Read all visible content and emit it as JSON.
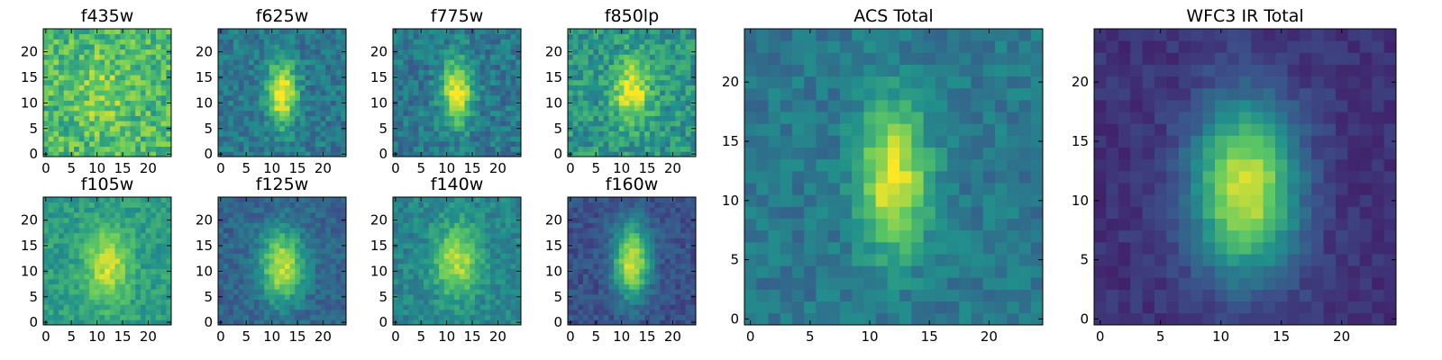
{
  "figure": {
    "colormap": [
      "#440154",
      "#3b528b",
      "#21918c",
      "#5ec962",
      "#fde725"
    ]
  },
  "chart_data": [
    {
      "type": "heatmap",
      "title": "f435w",
      "grid_size": 25,
      "xticks": [
        0,
        5,
        10,
        15,
        20
      ],
      "yticks": [
        0,
        5,
        10,
        15,
        20
      ],
      "xlim": [
        -0.5,
        24.5
      ],
      "ylim": [
        -0.5,
        24.5
      ],
      "peak": [
        11,
        12
      ],
      "sigma": [
        3,
        5
      ],
      "amp": 0.15,
      "background": 0.68,
      "noise": 0.35
    },
    {
      "type": "heatmap",
      "title": "f625w",
      "grid_size": 25,
      "xticks": [
        0,
        5,
        10,
        15,
        20
      ],
      "yticks": [
        0,
        5,
        10,
        15,
        20
      ],
      "xlim": [
        -0.5,
        24.5
      ],
      "ylim": [
        -0.5,
        24.5
      ],
      "peak": [
        12,
        12
      ],
      "sigma": [
        2,
        4.5
      ],
      "amp": 0.62,
      "background": 0.4,
      "noise": 0.25
    },
    {
      "type": "heatmap",
      "title": "f775w",
      "grid_size": 25,
      "xticks": [
        0,
        5,
        10,
        15,
        20
      ],
      "yticks": [
        0,
        5,
        10,
        15,
        20
      ],
      "xlim": [
        -0.5,
        24.5
      ],
      "ylim": [
        -0.5,
        24.5
      ],
      "peak": [
        12,
        12
      ],
      "sigma": [
        2,
        4.5
      ],
      "amp": 0.62,
      "background": 0.4,
      "noise": 0.25
    },
    {
      "type": "heatmap",
      "title": "f850lp",
      "grid_size": 25,
      "xticks": [
        0,
        5,
        10,
        15,
        20
      ],
      "yticks": [
        0,
        5,
        10,
        15,
        20
      ],
      "xlim": [
        -0.5,
        24.5
      ],
      "ylim": [
        -0.5,
        24.5
      ],
      "peak": [
        12,
        12
      ],
      "sigma": [
        2.5,
        4.5
      ],
      "amp": 0.45,
      "background": 0.52,
      "noise": 0.3
    },
    {
      "type": "heatmap",
      "title": "f105w",
      "grid_size": 25,
      "xticks": [
        0,
        5,
        10,
        15,
        20
      ],
      "yticks": [
        0,
        5,
        10,
        15,
        20
      ],
      "xlim": [
        -0.5,
        24.5
      ],
      "ylim": [
        -0.5,
        24.5
      ],
      "peak": [
        12,
        11
      ],
      "sigma": [
        3,
        5
      ],
      "amp": 0.38,
      "background": 0.55,
      "noise": 0.2
    },
    {
      "type": "heatmap",
      "title": "f125w",
      "grid_size": 25,
      "xticks": [
        0,
        5,
        10,
        15,
        20
      ],
      "yticks": [
        0,
        5,
        10,
        15,
        20
      ],
      "xlim": [
        -0.5,
        24.5
      ],
      "ylim": [
        -0.5,
        24.5
      ],
      "peak": [
        12,
        11
      ],
      "sigma": [
        3,
        5
      ],
      "amp": 0.6,
      "background": 0.32,
      "noise": 0.18
    },
    {
      "type": "heatmap",
      "title": "f140w",
      "grid_size": 25,
      "xticks": [
        0,
        5,
        10,
        15,
        20
      ],
      "yticks": [
        0,
        5,
        10,
        15,
        20
      ],
      "xlim": [
        -0.5,
        24.5
      ],
      "ylim": [
        -0.5,
        24.5
      ],
      "peak": [
        12,
        12
      ],
      "sigma": [
        3,
        5
      ],
      "amp": 0.45,
      "background": 0.45,
      "noise": 0.2
    },
    {
      "type": "heatmap",
      "title": "f160w",
      "grid_size": 25,
      "xticks": [
        0,
        5,
        10,
        15,
        20
      ],
      "yticks": [
        0,
        5,
        10,
        15,
        20
      ],
      "xlim": [
        -0.5,
        24.5
      ],
      "ylim": [
        -0.5,
        24.5
      ],
      "peak": [
        12,
        12
      ],
      "sigma": [
        2.5,
        5
      ],
      "amp": 0.7,
      "background": 0.25,
      "noise": 0.16
    },
    {
      "type": "heatmap",
      "title": "ACS Total",
      "grid_size": 25,
      "xticks": [
        0,
        5,
        10,
        15,
        20
      ],
      "yticks": [
        0,
        5,
        10,
        15,
        20
      ],
      "xlim": [
        -0.5,
        24.5
      ],
      "ylim": [
        -0.5,
        24.5
      ],
      "peak": [
        12,
        12
      ],
      "sigma": [
        2,
        4.5
      ],
      "amp": 0.58,
      "background": 0.4,
      "noise": 0.18
    },
    {
      "type": "heatmap",
      "title": "WFC3 IR Total",
      "grid_size": 25,
      "xticks": [
        0,
        5,
        10,
        15,
        20
      ],
      "yticks": [
        0,
        5,
        10,
        15,
        20
      ],
      "xlim": [
        -0.5,
        24.5
      ],
      "ylim": [
        -0.5,
        24.5
      ],
      "peak": [
        12,
        11
      ],
      "sigma": [
        3,
        5
      ],
      "amp": 0.8,
      "background": 0.15,
      "noise": 0.1
    }
  ]
}
